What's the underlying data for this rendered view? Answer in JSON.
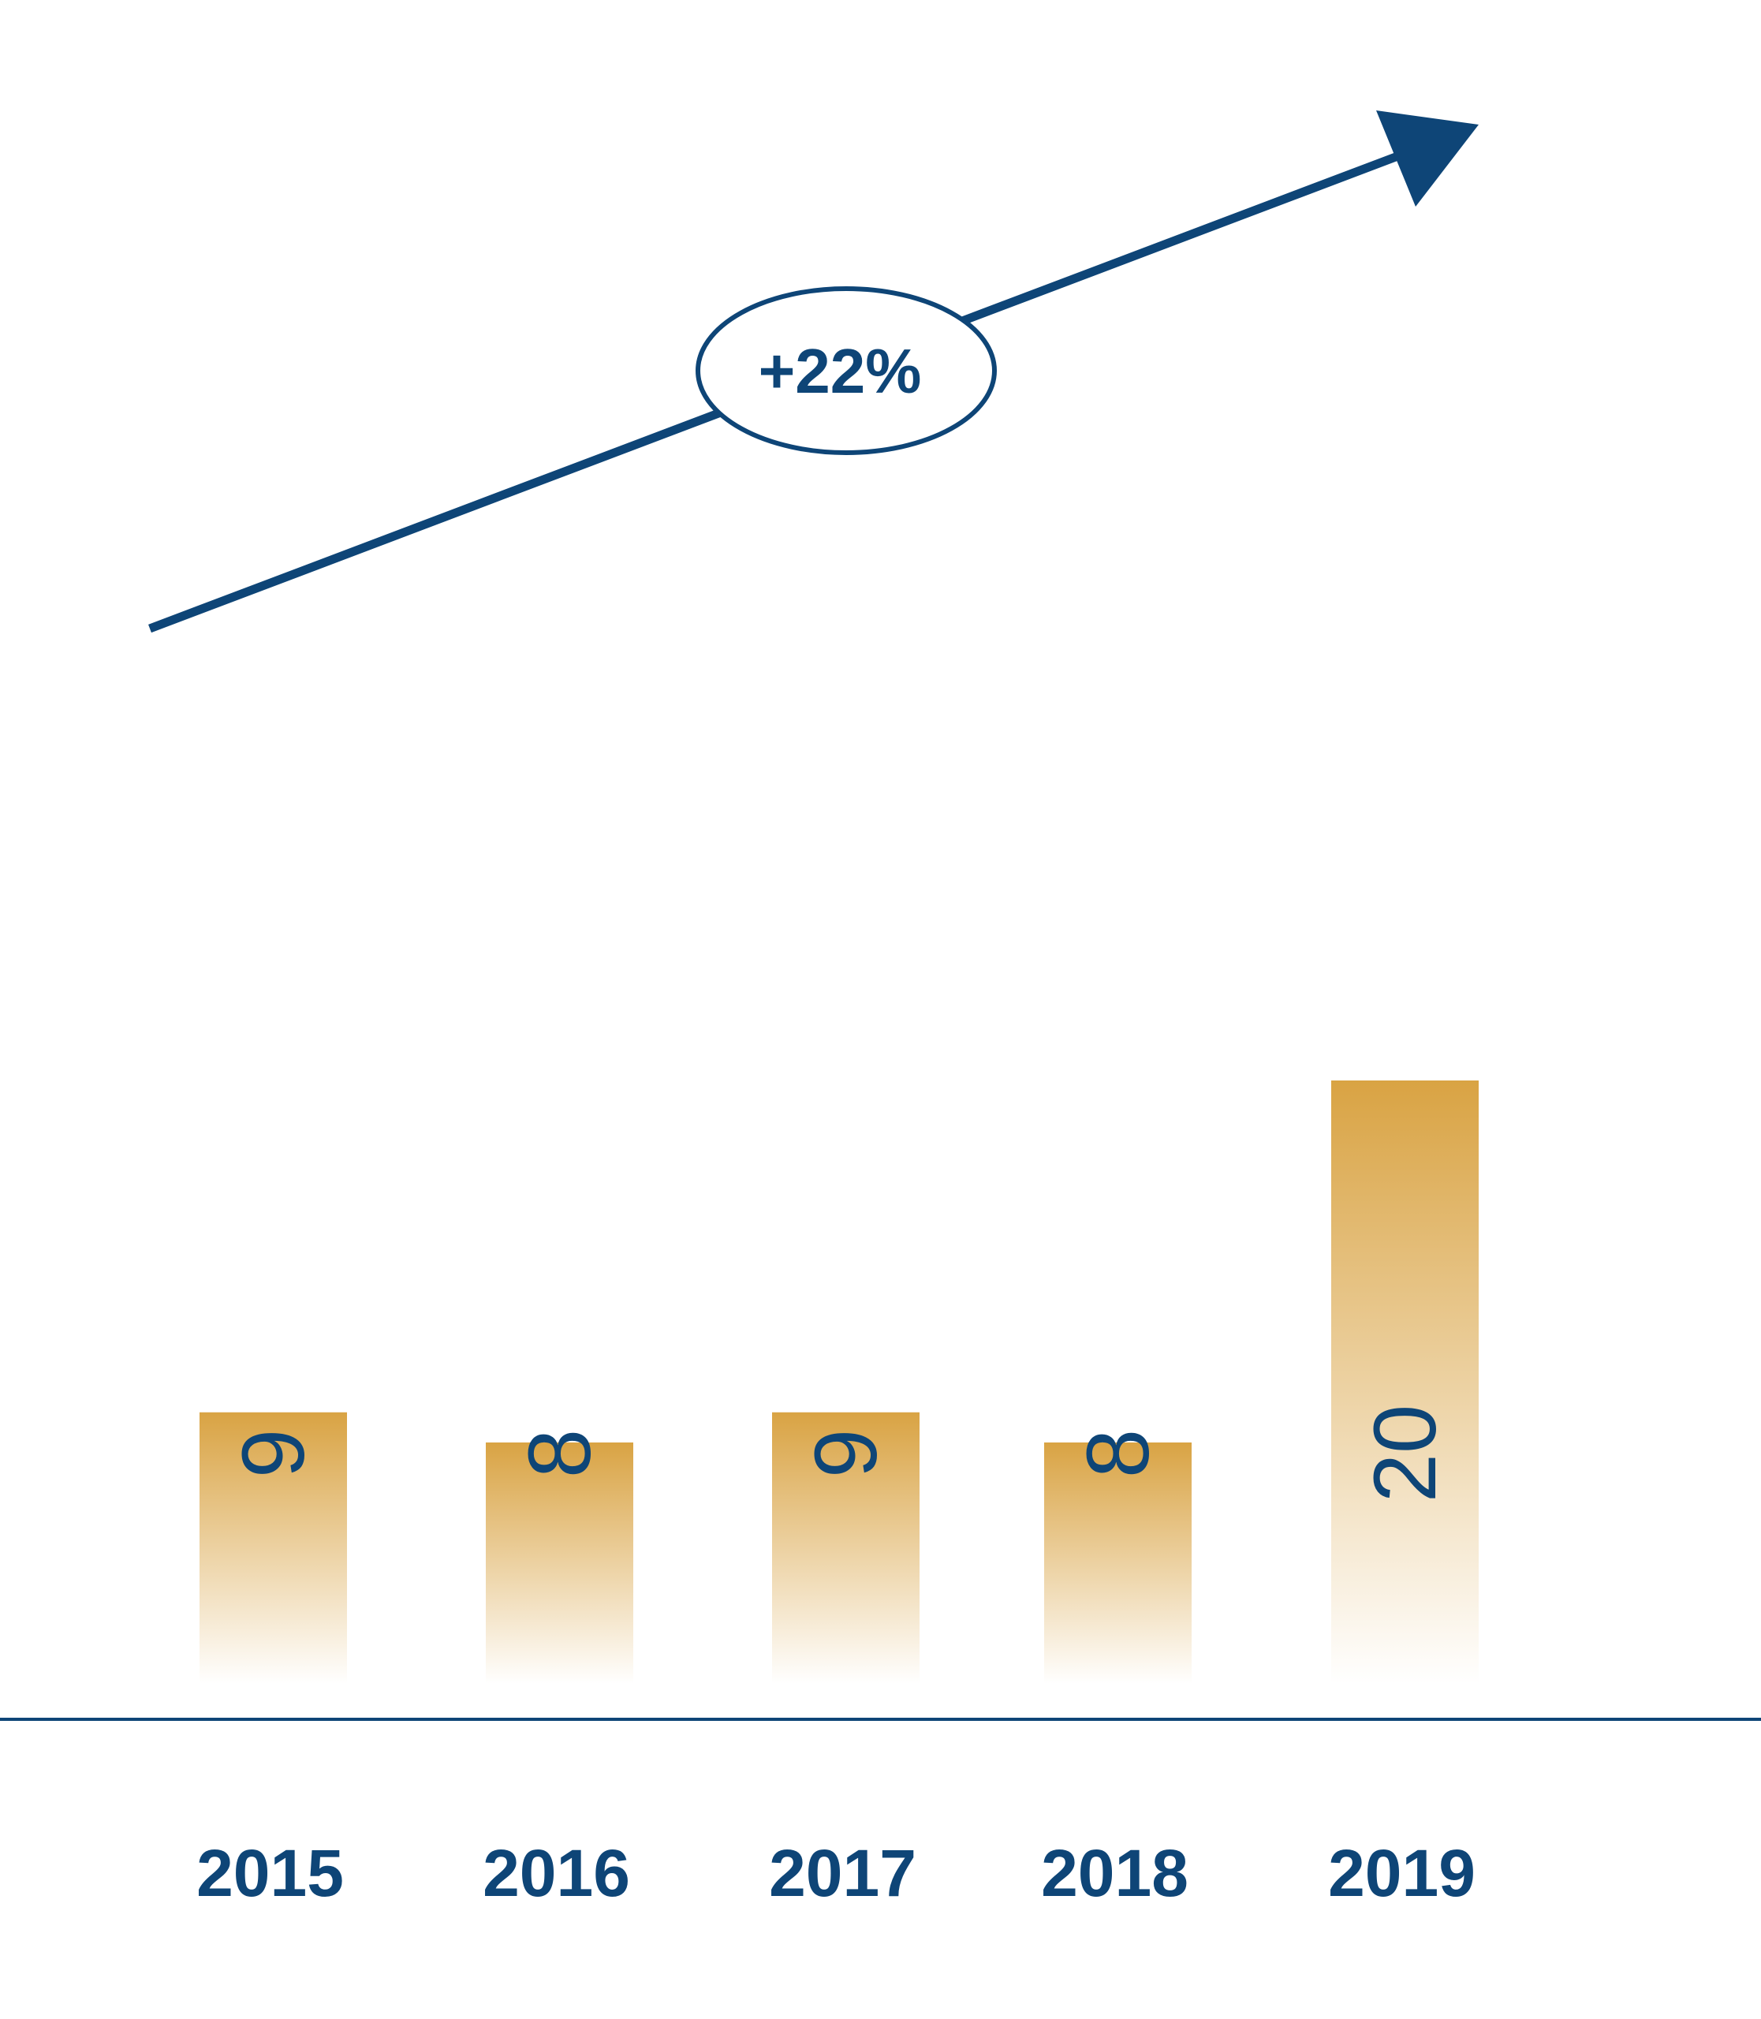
{
  "chart_data": {
    "type": "bar",
    "categories": [
      "2015",
      "2016",
      "2017",
      "2018",
      "2019"
    ],
    "values": [
      9,
      8,
      9,
      8,
      20
    ],
    "title": "",
    "xlabel": "",
    "ylabel": "",
    "ylim": [
      0,
      20
    ],
    "grid": false,
    "legend": "none",
    "value_labels_rotated": true,
    "annotation": {
      "label": "+22%",
      "shape": "rising-trend-arrow"
    }
  },
  "colors": {
    "bar_top": "#D9A343",
    "bar_bottom": "#FFFFFF",
    "navy": "#0E4577",
    "background": "#FFFFFF"
  }
}
